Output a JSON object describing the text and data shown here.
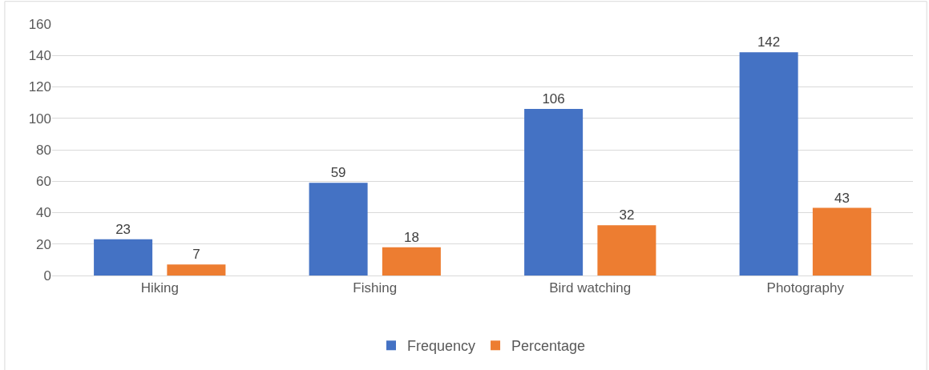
{
  "chart_data": {
    "type": "bar",
    "categories": [
      "Hiking",
      "Fishing",
      "Bird watching",
      "Photography"
    ],
    "series": [
      {
        "name": "Frequency",
        "color": "#4472c4",
        "values": [
          23,
          59,
          106,
          142
        ]
      },
      {
        "name": "Percentage",
        "color": "#ed7d31",
        "values": [
          7,
          18,
          32,
          43
        ]
      }
    ],
    "ylim": [
      0,
      160
    ],
    "yticks": [
      0,
      20,
      40,
      60,
      80,
      100,
      120,
      140,
      160
    ],
    "grid": "y",
    "legend": "bottom",
    "data_labels": true
  }
}
